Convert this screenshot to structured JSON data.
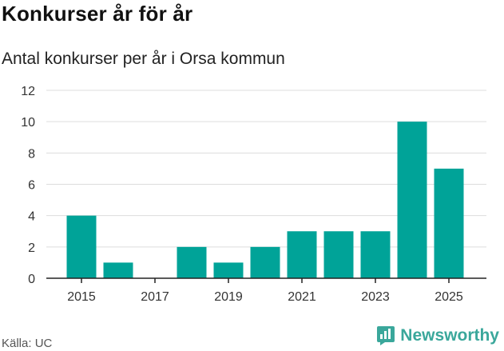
{
  "header": {
    "title": "Konkurser år för år",
    "subtitle": "Antal konkurser per år i Orsa kommun"
  },
  "footer": {
    "source": "Källa: UC",
    "brand": "Newsworthy",
    "brand_icon": "newsworthy-logo-icon"
  },
  "colors": {
    "bar": "#00a398",
    "grid": "#dddddd",
    "axis": "#222222",
    "brand": "#3aa79b"
  },
  "chart_data": {
    "type": "bar",
    "categories": [
      "2015",
      "2016",
      "2017",
      "2018",
      "2019",
      "2020",
      "2021",
      "2022",
      "2023",
      "2024",
      "2025"
    ],
    "values": [
      4,
      1,
      0,
      2,
      1,
      2,
      3,
      3,
      3,
      10,
      7
    ],
    "x_tick_labels": [
      "2015",
      "2017",
      "2019",
      "2021",
      "2023",
      "2025"
    ],
    "y_ticks": [
      0,
      2,
      4,
      6,
      8,
      10,
      12
    ],
    "ylim": [
      0,
      12
    ],
    "grid": true
  }
}
